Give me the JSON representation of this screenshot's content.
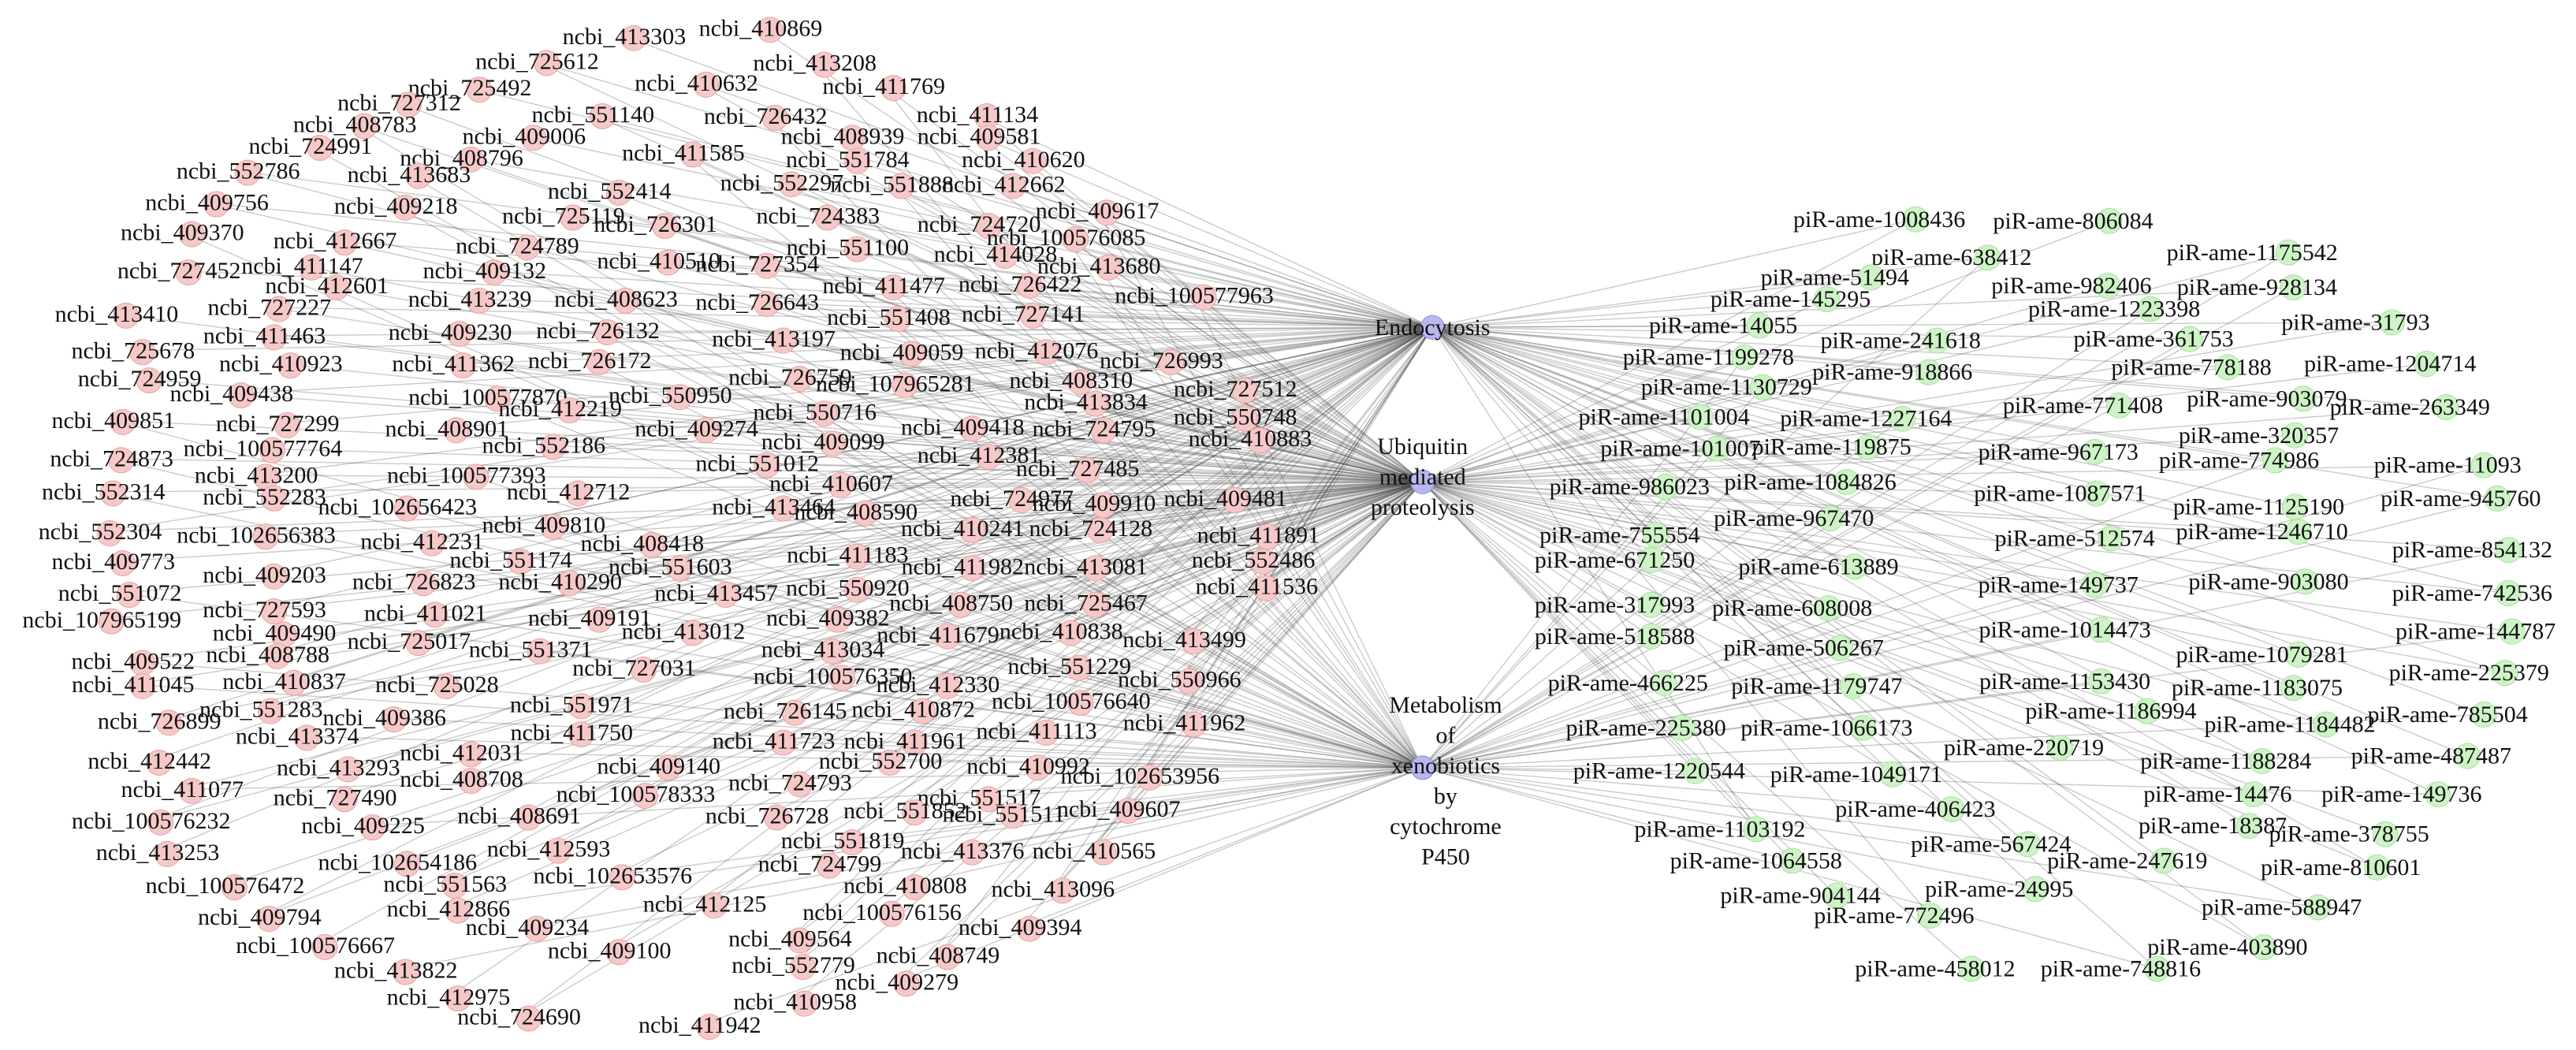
{
  "mrna_nodes": [
    "ncbi_413303",
    "ncbi_410869",
    "ncbi_725612",
    "ncbi_413208",
    "ncbi_410632",
    "ncbi_411769",
    "ncbi_725492",
    "ncbi_727312",
    "ncbi_551140",
    "ncbi_726432",
    "ncbi_411134",
    "ncbi_408783",
    "ncbi_409006",
    "ncbi_408939",
    "ncbi_409581",
    "ncbi_724991",
    "ncbi_408796",
    "ncbi_411585",
    "ncbi_551784",
    "ncbi_410620",
    "ncbi_552786",
    "ncbi_413683",
    "ncbi_552297",
    "ncbi_551888",
    "ncbi_412662",
    "ncbi_552414",
    "ncbi_409756",
    "ncbi_409218",
    "ncbi_724383",
    "ncbi_409617",
    "ncbi_725119",
    "ncbi_726301",
    "ncbi_724720",
    "ncbi_409370",
    "ncbi_412667",
    "ncbi_100576085",
    "ncbi_724789",
    "ncbi_551100",
    "ncbi_410510",
    "ncbi_727354",
    "ncbi_414028",
    "ncbi_413680",
    "ncbi_727452",
    "ncbi_411147",
    "ncbi_409132",
    "ncbi_411477",
    "ncbi_726422",
    "ncbi_412601",
    "ncbi_413239",
    "ncbi_408623",
    "ncbi_726643",
    "ncbi_100577963",
    "ncbi_727227",
    "ncbi_551408",
    "ncbi_727141",
    "ncbi_413410",
    "ncbi_409230",
    "ncbi_726132",
    "ncbi_411463",
    "ncbi_413197",
    "ncbi_725678",
    "ncbi_410923",
    "ncbi_411362",
    "ncbi_726172",
    "ncbi_409059",
    "ncbi_412076",
    "ncbi_726993",
    "ncbi_724959",
    "ncbi_726759",
    "ncbi_107965281",
    "ncbi_408310",
    "ncbi_100577870",
    "ncbi_550950",
    "ncbi_727512",
    "ncbi_409438",
    "ncbi_550716",
    "ncbi_413834",
    "ncbi_409851",
    "ncbi_727299",
    "ncbi_412219",
    "ncbi_409274",
    "ncbi_550748",
    "ncbi_408901",
    "ncbi_724795",
    "ncbi_410883",
    "ncbi_100577764",
    "ncbi_552186",
    "ncbi_409099",
    "ncbi_409418",
    "ncbi_724873",
    "ncbi_412381",
    "ncbi_551012",
    "ncbi_727485",
    "ncbi_100577393",
    "ncbi_413200",
    "ncbi_552314",
    "ncbi_552283",
    "ncbi_412712",
    "ncbi_410607",
    "ncbi_102656423",
    "ncbi_413464",
    "ncbi_408590",
    "ncbi_724977",
    "ncbi_409910",
    "ncbi_409481",
    "ncbi_409810",
    "ncbi_552304",
    "ncbi_102656383",
    "ncbi_412231",
    "ncbi_410241",
    "ncbi_724128",
    "ncbi_411891",
    "ncbi_408418",
    "ncbi_411183",
    "ncbi_552486",
    "ncbi_409773",
    "ncbi_551174",
    "ncbi_551603",
    "ncbi_411982",
    "ncbi_413081",
    "ncbi_409203",
    "ncbi_726823",
    "ncbi_410290",
    "ncbi_550920",
    "ncbi_411536",
    "ncbi_551072",
    "ncbi_413457",
    "ncbi_107965199",
    "ncbi_727593",
    "ncbi_411021",
    "ncbi_409191",
    "ncbi_408750",
    "ncbi_725467",
    "ncbi_409490",
    "ncbi_725017",
    "ncbi_413012",
    "ncbi_409382",
    "ncbi_411679",
    "ncbi_410838",
    "ncbi_413499",
    "ncbi_408788",
    "ncbi_551371",
    "ncbi_413034",
    "ncbi_409522",
    "ncbi_727031",
    "ncbi_100576350",
    "ncbi_412330",
    "ncbi_551229",
    "ncbi_550966",
    "ncbi_411045",
    "ncbi_410837",
    "ncbi_725028",
    "ncbi_551283",
    "ncbi_409386",
    "ncbi_551971",
    "ncbi_726145",
    "ncbi_410872",
    "ncbi_100576640",
    "ncbi_726899",
    "ncbi_413374",
    "ncbi_411750",
    "ncbi_411723",
    "ncbi_411961",
    "ncbi_411113",
    "ncbi_411962",
    "ncbi_412031",
    "ncbi_409140",
    "ncbi_552700",
    "ncbi_412442",
    "ncbi_413293",
    "ncbi_408708",
    "ncbi_410992",
    "ncbi_102653956",
    "ncbi_411077",
    "ncbi_724793",
    "ncbi_727490",
    "ncbi_100578333",
    "ncbi_551517",
    "ncbi_100576232",
    "ncbi_409225",
    "ncbi_408691",
    "ncbi_726728",
    "ncbi_551852",
    "ncbi_551511",
    "ncbi_409607",
    "ncbi_551819",
    "ncbi_413253",
    "ncbi_102654186",
    "ncbi_412593",
    "ncbi_413376",
    "ncbi_410565",
    "ncbi_102653576",
    "ncbi_724799",
    "ncbi_100576472",
    "ncbi_551563",
    "ncbi_410808",
    "ncbi_413096",
    "ncbi_412866",
    "ncbi_412125",
    "ncbi_100576156",
    "ncbi_409794",
    "ncbi_409234",
    "ncbi_409564",
    "ncbi_409394",
    "ncbi_100576667",
    "ncbi_409100",
    "ncbi_408749",
    "ncbi_413822",
    "ncbi_552779",
    "ncbi_409279",
    "ncbi_412975",
    "ncbi_410958",
    "ncbi_724690",
    "ncbi_411942"
  ],
  "pathway_nodes": [
    [
      "Endocytosis"
    ],
    [
      "Ubiquitin",
      "mediated",
      "proteolysis"
    ],
    [
      "Metabolism",
      "of",
      "xenobiotics",
      "by",
      "cytochrome",
      "P450"
    ]
  ],
  "pirna_nodes": [
    "piR-ame-1008436",
    "piR-ame-806084",
    "piR-ame-638412",
    "piR-ame-1175542",
    "piR-ame-51494",
    "piR-ame-145295",
    "piR-ame-982406",
    "piR-ame-928134",
    "piR-ame-1223398",
    "piR-ame-14055",
    "piR-ame-31793",
    "piR-ame-241618",
    "piR-ame-361753",
    "piR-ame-1199278",
    "piR-ame-918866",
    "piR-ame-778188",
    "piR-ame-1204714",
    "piR-ame-1130729",
    "piR-ame-771408",
    "piR-ame-903079",
    "piR-ame-263349",
    "piR-ame-1101004",
    "piR-ame-1227164",
    "piR-ame-101007",
    "piR-ame-119875",
    "piR-ame-967173",
    "piR-ame-320357",
    "piR-ame-774986",
    "piR-ame-11093",
    "piR-ame-986023",
    "piR-ame-1084826",
    "piR-ame-1087571",
    "piR-ame-945760",
    "piR-ame-967470",
    "piR-ame-1125190",
    "piR-ame-1246710",
    "piR-ame-755554",
    "piR-ame-512574",
    "piR-ame-854132",
    "piR-ame-671250",
    "piR-ame-613889",
    "piR-ame-317993",
    "piR-ame-608008",
    "piR-ame-149737",
    "piR-ame-903080",
    "piR-ame-742536",
    "piR-ame-518588",
    "piR-ame-1014473",
    "piR-ame-144787",
    "piR-ame-506267",
    "piR-ame-1079281",
    "piR-ame-466225",
    "piR-ame-1179747",
    "piR-ame-1153430",
    "piR-ame-1183075",
    "piR-ame-225379",
    "piR-ame-1186994",
    "piR-ame-785504",
    "piR-ame-225380",
    "piR-ame-1066173",
    "piR-ame-1184482",
    "piR-ame-220719",
    "piR-ame-487487",
    "piR-ame-1220544",
    "piR-ame-1049171",
    "piR-ame-1188284",
    "piR-ame-14476",
    "piR-ame-149736",
    "piR-ame-406423",
    "piR-ame-18387",
    "piR-ame-1103192",
    "piR-ame-378755",
    "piR-ame-567424",
    "piR-ame-1064558",
    "piR-ame-247619",
    "piR-ame-810601",
    "piR-ame-904144",
    "piR-ame-24995",
    "piR-ame-588947",
    "piR-ame-772496",
    "piR-ame-403890",
    "piR-ame-458012",
    "piR-ame-748816"
  ]
}
